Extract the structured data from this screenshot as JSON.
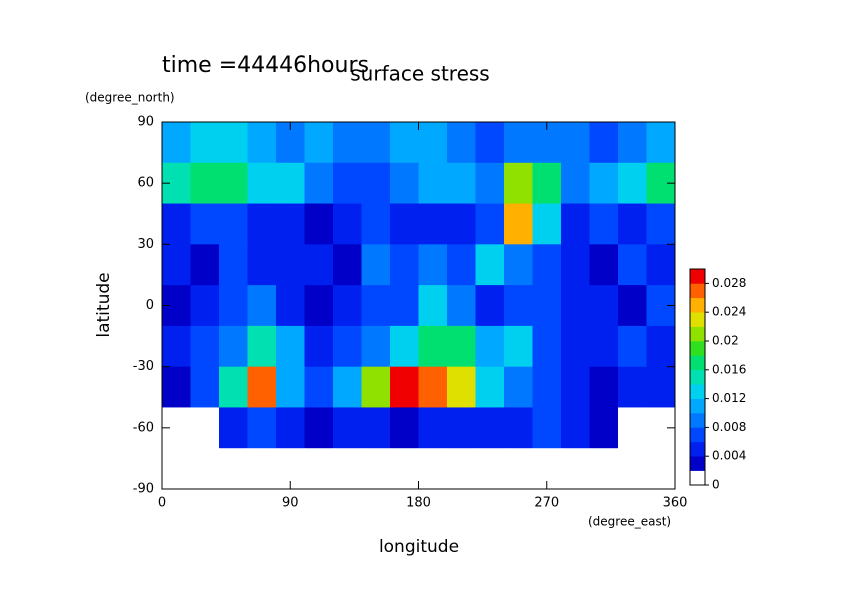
{
  "chart_data": {
    "type": "heatmap",
    "title": "surface stress",
    "subtitle": "time =44446hours",
    "x_label": "longitude",
    "x_unit": "(degree_east)",
    "y_label": "latitude",
    "y_unit": "(degree_north)",
    "x": [
      10,
      30,
      50,
      70,
      90,
      110,
      130,
      150,
      170,
      190,
      210,
      230,
      250,
      270,
      290,
      310,
      330,
      350
    ],
    "y": [
      80,
      60,
      40,
      20,
      0,
      -20,
      -40,
      -60,
      -80
    ],
    "values": [
      [
        0.01,
        0.012,
        0.012,
        0.01,
        0.008,
        0.01,
        0.008,
        0.008,
        0.01,
        0.01,
        0.008,
        0.006,
        0.008,
        0.008,
        0.008,
        0.006,
        0.008,
        0.01
      ],
      [
        0.014,
        0.016,
        0.016,
        0.012,
        0.012,
        0.008,
        0.006,
        0.006,
        0.008,
        0.01,
        0.01,
        0.008,
        0.02,
        0.016,
        0.008,
        0.01,
        0.012,
        0.016
      ],
      [
        0.004,
        0.006,
        0.006,
        0.004,
        0.004,
        0.002,
        0.004,
        0.006,
        0.004,
        0.004,
        0.004,
        0.006,
        0.024,
        0.012,
        0.004,
        0.006,
        0.004,
        0.006
      ],
      [
        0.004,
        0.002,
        0.006,
        0.004,
        0.004,
        0.004,
        0.002,
        0.008,
        0.006,
        0.008,
        0.006,
        0.012,
        0.008,
        0.006,
        0.004,
        0.002,
        0.006,
        0.004
      ],
      [
        0.002,
        0.004,
        0.006,
        0.008,
        0.004,
        0.002,
        0.004,
        0.006,
        0.006,
        0.012,
        0.008,
        0.004,
        0.006,
        0.006,
        0.004,
        0.004,
        0.002,
        0.006
      ],
      [
        0.004,
        0.006,
        0.008,
        0.014,
        0.01,
        0.004,
        0.006,
        0.008,
        0.012,
        0.016,
        0.016,
        0.01,
        0.012,
        0.006,
        0.004,
        0.004,
        0.006,
        0.004
      ],
      [
        0.002,
        0.006,
        0.014,
        0.026,
        0.01,
        0.006,
        0.01,
        0.02,
        0.028,
        0.026,
        0.022,
        0.012,
        0.008,
        0.006,
        0.004,
        0.002,
        0.004,
        0.004
      ],
      [
        0.0,
        0.0,
        0.004,
        0.006,
        0.004,
        0.002,
        0.004,
        0.004,
        0.002,
        0.004,
        0.004,
        0.004,
        0.004,
        0.006,
        0.004,
        0.002,
        0.0,
        0.0
      ],
      [
        0,
        0,
        0,
        0,
        0,
        0,
        0,
        0,
        0,
        0,
        0,
        0,
        0,
        0,
        0,
        0,
        0,
        0
      ]
    ],
    "xlim": [
      0,
      360
    ],
    "ylim": [
      -90,
      90
    ],
    "xticks": [
      0,
      90,
      180,
      270,
      360
    ],
    "yticks": [
      -90,
      -60,
      -30,
      0,
      30,
      60,
      90
    ],
    "colorbar": {
      "lim": [
        0,
        0.03
      ],
      "ticks": [
        0,
        0.004,
        0.008,
        0.012,
        0.016,
        0.02,
        0.024,
        0.028
      ],
      "colors": [
        "#ffffff",
        "#0000c8",
        "#0020f0",
        "#0048ff",
        "#0078ff",
        "#00a8ff",
        "#00d0f0",
        "#00e0b0",
        "#00e070",
        "#30e020",
        "#90e000",
        "#e0e000",
        "#ffb000",
        "#ff6000",
        "#f00000"
      ]
    }
  }
}
